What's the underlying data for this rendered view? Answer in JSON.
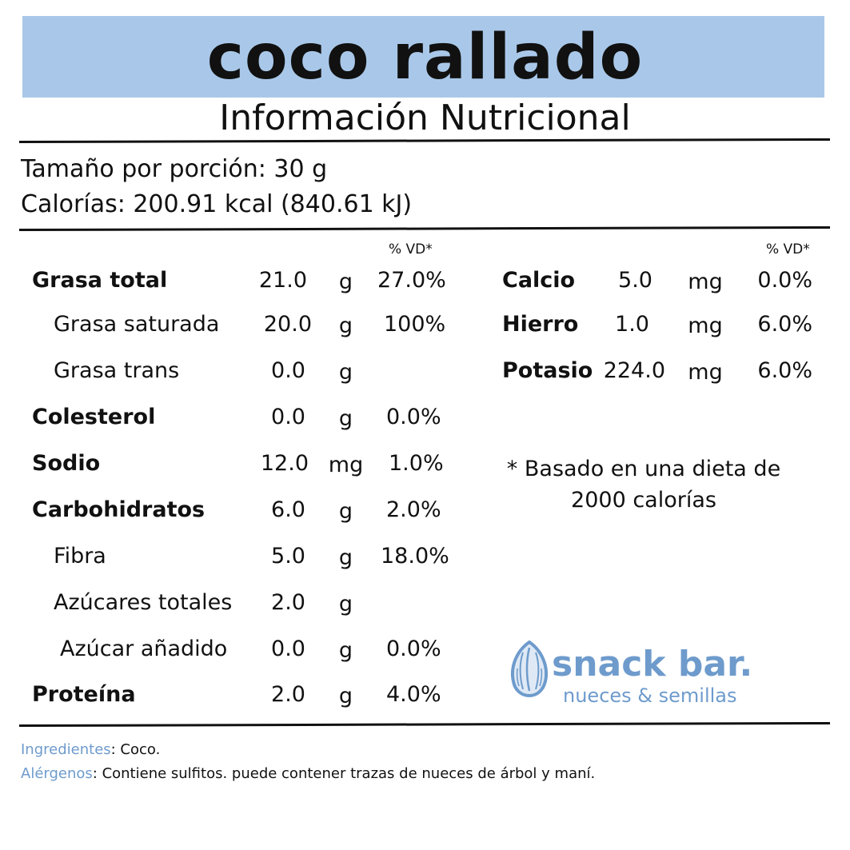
{
  "product_title": "coco rallado",
  "subtitle": "Información Nutricional",
  "serving_size": "Tamaño por porción: 30 g",
  "calories": "Calorías: 200.91 kcal (840.61 kJ)",
  "vd_header": "% VD*",
  "left_rows": [
    {
      "name": "Grasa total",
      "amount": "21.0",
      "unit": "g",
      "vd": "27.0%"
    },
    {
      "name": "Grasa saturada",
      "amount": "20.0",
      "unit": "g",
      "vd": "100%"
    },
    {
      "name": "Grasa trans",
      "amount": "0.0",
      "unit": "g",
      "vd": ""
    },
    {
      "name": "Colesterol",
      "amount": "0.0",
      "unit": "g",
      "vd": "0.0%"
    },
    {
      "name": "Sodio",
      "amount": "12.0",
      "unit": "mg",
      "vd": "1.0%"
    },
    {
      "name": "Carbohidratos",
      "amount": "6.0",
      "unit": "g",
      "vd": "2.0%"
    },
    {
      "name": "Fibra",
      "amount": "5.0",
      "unit": "g",
      "vd": "18.0%"
    },
    {
      "name": "Azúcares totales",
      "amount": "2.0",
      "unit": "g",
      "vd": ""
    },
    {
      "name": "Azúcar añadido",
      "amount": "0.0",
      "unit": "g",
      "vd": "0.0%"
    },
    {
      "name": "Proteína",
      "amount": "2.0",
      "unit": "g",
      "vd": "4.0%"
    }
  ],
  "right_rows": [
    {
      "name": "Calcio",
      "amount": "5.0",
      "unit": "mg",
      "vd": "0.0%"
    },
    {
      "name": "Hierro",
      "amount": "1.0",
      "unit": "mg",
      "vd": "6.0%"
    },
    {
      "name": "Potasio",
      "amount": "224.0",
      "unit": "mg",
      "vd": "6.0%"
    }
  ],
  "footnote_line1": "* Basado en una dieta de",
  "footnote_line2": "2000 calorías",
  "logo": {
    "icon": "almond-icon",
    "name": "snack bar.",
    "tagline": "nueces & semillas",
    "color": "#6e9bcc"
  },
  "banner_color": "#a9c8e9",
  "ingredients_label": "Ingredientes",
  "ingredients_text": ": Coco.",
  "allergens_label": "Alérgenos",
  "allergens_text": ": Contiene sulfitos. puede contener trazas de nueces de árbol y maní."
}
